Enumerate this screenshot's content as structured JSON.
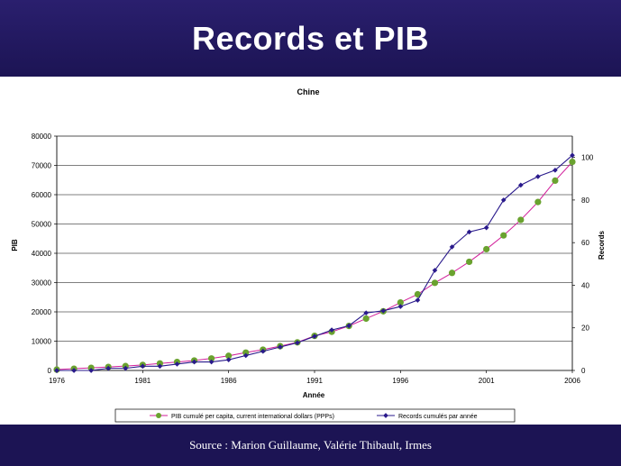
{
  "header": {
    "title": "Records et PIB"
  },
  "footer": {
    "source": "Source : Marion Guillaume, Valérie Thibault, Irmes"
  },
  "colors": {
    "banner": "#1c1454",
    "pib_line": "#d21e9a",
    "pib_marker": "#6aa22f",
    "records": "#2a1a8c"
  },
  "chart_data": {
    "type": "line",
    "title": "Chine",
    "xlabel": "Année",
    "ylabel": "PIB",
    "y2label": "Records",
    "xlim": [
      1976,
      2006
    ],
    "ylim": [
      0,
      80000
    ],
    "y2lim": [
      0,
      110
    ],
    "x_ticks": [
      1976,
      1981,
      1986,
      1991,
      1996,
      2001,
      2006
    ],
    "y_ticks": [
      0,
      10000,
      20000,
      30000,
      40000,
      50000,
      60000,
      70000,
      80000
    ],
    "y2_ticks": [
      0,
      20,
      40,
      60,
      80,
      100
    ],
    "grid": true,
    "legend_position": "bottom",
    "series": [
      {
        "name": "PIB cumulé per capita, current international dollars (PPPs)",
        "axis": "left",
        "x": [
          1976,
          1977,
          1978,
          1979,
          1980,
          1981,
          1982,
          1983,
          1984,
          1985,
          1986,
          1987,
          1988,
          1989,
          1990,
          1991,
          1992,
          1993,
          1994,
          1995,
          1996,
          1997,
          1998,
          1999,
          2000,
          2001,
          2002,
          2003,
          2004,
          2005,
          2006
        ],
        "values": [
          300,
          600,
          900,
          1200,
          1500,
          1900,
          2400,
          2900,
          3400,
          4100,
          5000,
          6100,
          7100,
          8300,
          9600,
          11800,
          13200,
          15200,
          17700,
          20200,
          23200,
          26000,
          29900,
          33300,
          37100,
          41400,
          46100,
          51400,
          57500,
          64800,
          71200
        ]
      },
      {
        "name": "Records cumulés par année",
        "axis": "right",
        "x": [
          1976,
          1977,
          1978,
          1979,
          1980,
          1981,
          1982,
          1983,
          1984,
          1985,
          1986,
          1987,
          1988,
          1989,
          1990,
          1991,
          1992,
          1993,
          1994,
          1995,
          1996,
          1997,
          1998,
          1999,
          2000,
          2001,
          2002,
          2003,
          2004,
          2005,
          2006
        ],
        "values": [
          0,
          0,
          0,
          1,
          1,
          2,
          2,
          3,
          4,
          4,
          5,
          7,
          9,
          11,
          13,
          16,
          19,
          21,
          27,
          28,
          30,
          33,
          47,
          58,
          65,
          67,
          80,
          87,
          91,
          94,
          101
        ]
      }
    ]
  }
}
